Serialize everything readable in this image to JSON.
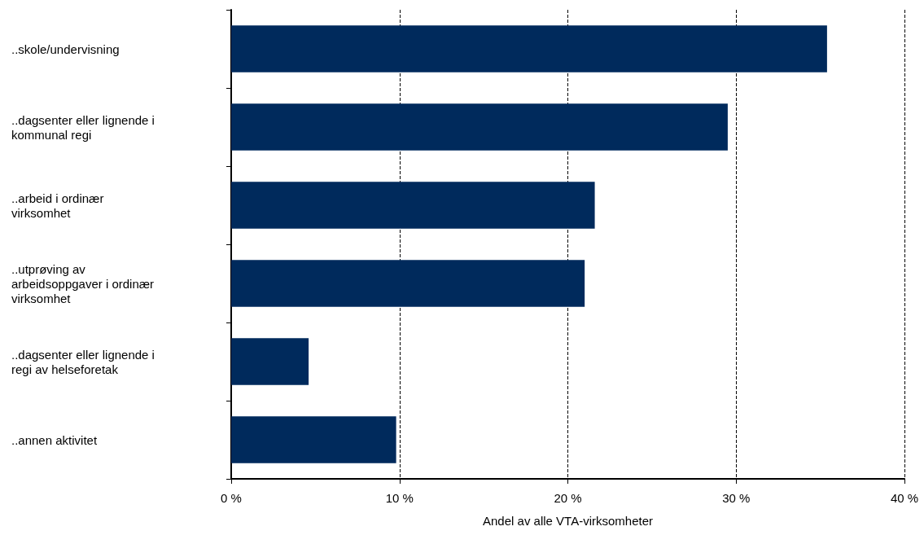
{
  "chart_data": {
    "type": "bar",
    "orientation": "horizontal",
    "xlabel": "Andel av alle VTA-virksomheter",
    "categories": [
      "..skole/undervisning",
      "..dagsenter eller lignende i\nkommunal regi",
      "..arbeid i ordinær\nvirksomhet",
      "..utprøving av\narbeidsoppgaver i ordinær\nvirksomhet",
      "..dagsenter eller lignende i\nregi av helseforetak",
      "..annen aktivitet"
    ],
    "values": [
      35.4,
      29.5,
      21.6,
      21.0,
      4.6,
      9.8
    ],
    "color": "#002a5c",
    "xlim": [
      0,
      40
    ],
    "xticks": [
      {
        "value": 0,
        "label": "0 %"
      },
      {
        "value": 10,
        "label": "10 %"
      },
      {
        "value": 20,
        "label": "20 %"
      },
      {
        "value": 30,
        "label": "30 %"
      },
      {
        "value": 40,
        "label": "40 %"
      }
    ],
    "grid": "x",
    "line_style": "dashed"
  }
}
